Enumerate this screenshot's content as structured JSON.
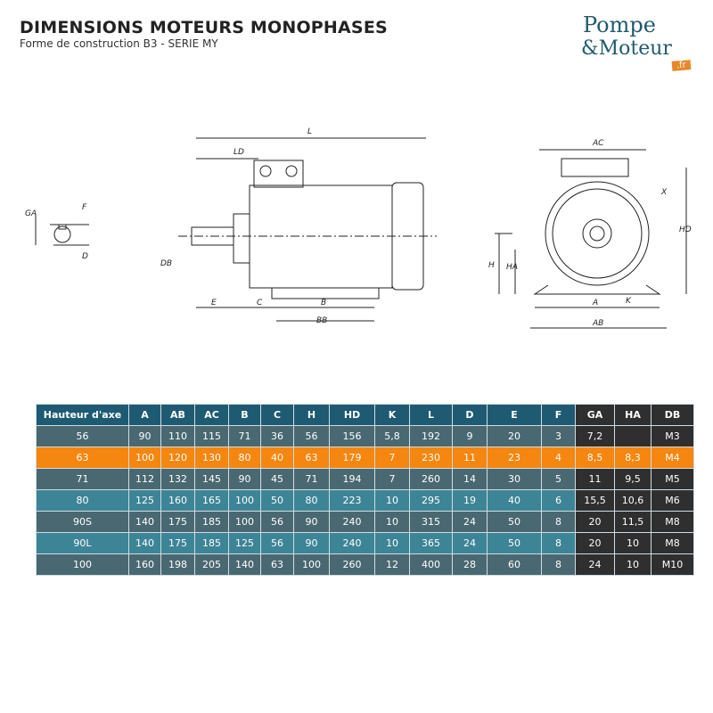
{
  "header": {
    "title": "DIMENSIONS MOTEURS MONOPHASES",
    "subtitle": "Forme de construction B3 - SERIE MY"
  },
  "logo": {
    "line1": "Pompe",
    "line2": "&Moteur",
    "badge": ".fr"
  },
  "drawing_labels": {
    "shaft": [
      "GA",
      "F",
      "D"
    ],
    "side": [
      "L",
      "LD",
      "DB",
      "E",
      "C",
      "B",
      "BB"
    ],
    "front": [
      "AC",
      "X",
      "HD",
      "H",
      "HA",
      "A",
      "K",
      "AB"
    ]
  },
  "colors": {
    "header": "#1f5a73",
    "row_dark": "#4a6872",
    "row_light": "#3d8496",
    "highlight": "#f5860f",
    "extra_cols": "#2f2f2f"
  },
  "table": {
    "columns": [
      "Hauteur d'axe",
      "A",
      "AB",
      "AC",
      "B",
      "C",
      "H",
      "HD",
      "K",
      "L",
      "D",
      "E",
      "F",
      "GA",
      "HA",
      "DB"
    ],
    "rows": [
      [
        "56",
        "90",
        "110",
        "115",
        "71",
        "36",
        "56",
        "156",
        "5,8",
        "192",
        "9",
        "20",
        "3",
        "7,2",
        "",
        "M3"
      ],
      [
        "63",
        "100",
        "120",
        "130",
        "80",
        "40",
        "63",
        "179",
        "7",
        "230",
        "11",
        "23",
        "4",
        "8,5",
        "8,3",
        "M4"
      ],
      [
        "71",
        "112",
        "132",
        "145",
        "90",
        "45",
        "71",
        "194",
        "7",
        "260",
        "14",
        "30",
        "5",
        "11",
        "9,5",
        "M5"
      ],
      [
        "80",
        "125",
        "160",
        "165",
        "100",
        "50",
        "80",
        "223",
        "10",
        "295",
        "19",
        "40",
        "6",
        "15,5",
        "10,6",
        "M6"
      ],
      [
        "90S",
        "140",
        "175",
        "185",
        "100",
        "56",
        "90",
        "240",
        "10",
        "315",
        "24",
        "50",
        "8",
        "20",
        "11,5",
        "M8"
      ],
      [
        "90L",
        "140",
        "175",
        "185",
        "125",
        "56",
        "90",
        "240",
        "10",
        "365",
        "24",
        "50",
        "8",
        "20",
        "10",
        "M8"
      ],
      [
        "100",
        "160",
        "198",
        "205",
        "140",
        "63",
        "100",
        "260",
        "12",
        "400",
        "28",
        "60",
        "8",
        "24",
        "10",
        "M10"
      ]
    ],
    "highlight_row": 1
  }
}
